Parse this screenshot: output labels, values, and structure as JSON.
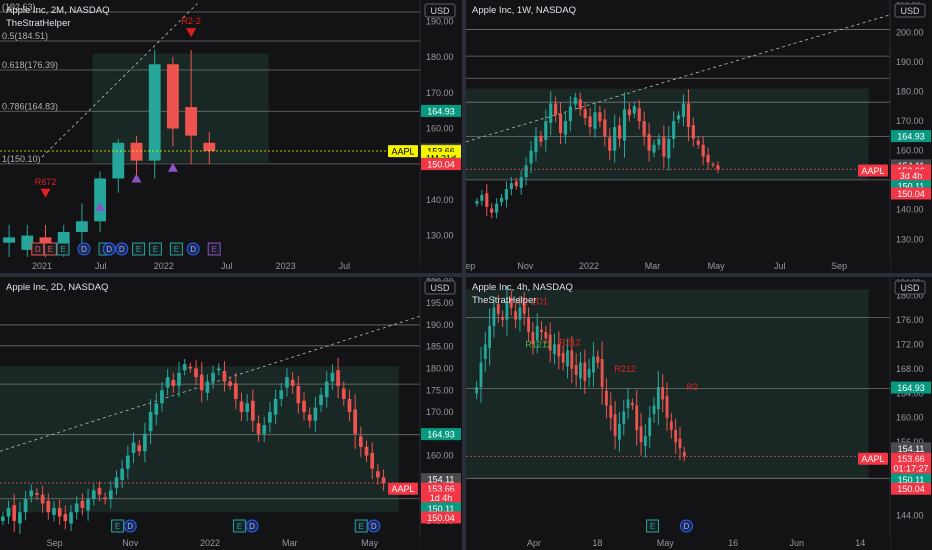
{
  "colors": {
    "up": "#26a69a",
    "down": "#ef5350",
    "grid": "#3a3a3e",
    "hline": "#8a8a8a",
    "zone": "#1f3a32",
    "price_green": "#089981",
    "price_red": "#f23645",
    "aapl_yellow": "#f5f500",
    "aapl_red": "#f25561",
    "marker_purple": "#8c52c4",
    "marker_red": "#e02020",
    "event_blue": "#2962ff",
    "event_green": "#26a69a",
    "event_red": "#ef5350"
  },
  "chart_data": [
    {
      "id": "p1",
      "type": "candlestick",
      "title": "Apple Inc, 2M, NASDAQ",
      "indicator": "TheStratHelper",
      "currency": "USD",
      "ylim": [
        124,
        196
      ],
      "yticks": [
        130,
        140,
        150,
        160,
        170,
        180,
        190
      ],
      "xticks": [
        {
          "x": 0.1,
          "label": "2021"
        },
        {
          "x": 0.24,
          "label": "Jul"
        },
        {
          "x": 0.39,
          "label": "2022"
        },
        {
          "x": 0.54,
          "label": "Jul"
        },
        {
          "x": 0.68,
          "label": "2023"
        },
        {
          "x": 0.82,
          "label": "Jul"
        }
      ],
      "candles": [
        {
          "o": 128,
          "h": 133,
          "l": 124,
          "c": 129.5
        },
        {
          "o": 126,
          "h": 133,
          "l": 122,
          "c": 130
        },
        {
          "o": 129.5,
          "h": 133,
          "l": 124,
          "c": 126
        },
        {
          "o": 126,
          "h": 133,
          "l": 124,
          "c": 131
        },
        {
          "o": 131,
          "h": 139,
          "l": 128,
          "c": 134
        },
        {
          "o": 134,
          "h": 148,
          "l": 131,
          "c": 146
        },
        {
          "o": 146,
          "h": 157,
          "l": 142,
          "c": 156
        },
        {
          "o": 156,
          "h": 158,
          "l": 147,
          "c": 151
        },
        {
          "o": 151,
          "h": 182,
          "l": 146,
          "c": 178
        },
        {
          "o": 178,
          "h": 180,
          "l": 155,
          "c": 160
        },
        {
          "o": 166,
          "h": 182,
          "l": 150,
          "c": 158
        },
        {
          "o": 156,
          "h": 159,
          "l": 150,
          "c": 153.7
        }
      ],
      "levels": [
        {
          "y": 192.63,
          "label": "(192.63)"
        },
        {
          "y": 184.51,
          "label": "0.5(184.51)"
        },
        {
          "y": 176.39,
          "label": "0.618(176.39)"
        },
        {
          "y": 164.83,
          "label": "0.786(164.83)"
        },
        {
          "y": 150.1,
          "label": "1(150.10)"
        }
      ],
      "price_labels": [
        {
          "y": 164.93,
          "text": "164.93",
          "kind": "green"
        },
        {
          "y": 154.11,
          "text": "154.11",
          "kind": "gray"
        },
        {
          "y": 153.66,
          "text": "153.66",
          "kind": "yellow"
        },
        {
          "y": 151.8,
          "text": "1M 21d",
          "kind": "yellow"
        },
        {
          "y": 150.11,
          "text": "150.11",
          "kind": "green"
        },
        {
          "y": 150.04,
          "text": "150.04",
          "kind": "red"
        }
      ],
      "tag": {
        "y": 153.66,
        "text": "AAPL",
        "kind": "yellow"
      },
      "markers": [
        {
          "i": 2,
          "y": 142,
          "shape": "down",
          "color": "red",
          "label": "R672"
        },
        {
          "i": 10,
          "y": 187,
          "shape": "down",
          "color": "red",
          "label": "R2-2"
        },
        {
          "i": 5,
          "y": 138,
          "shape": "up",
          "color": "purple"
        },
        {
          "i": 7,
          "y": 146,
          "shape": "up",
          "color": "purple"
        },
        {
          "i": 9,
          "y": 149,
          "shape": "up",
          "color": "purple"
        }
      ],
      "events": [
        {
          "x": 0.09,
          "t": "D",
          "c": "red"
        },
        {
          "x": 0.12,
          "t": "E",
          "c": "red"
        },
        {
          "x": 0.15,
          "t": "E",
          "c": "green"
        },
        {
          "x": 0.2,
          "t": "D",
          "c": "blue"
        },
        {
          "x": 0.25,
          "t": "E",
          "c": "green"
        },
        {
          "x": 0.29,
          "t": "D",
          "c": "blue"
        },
        {
          "x": 0.33,
          "t": "E",
          "c": "green"
        },
        {
          "x": 0.37,
          "t": "E",
          "c": "green"
        },
        {
          "x": 0.42,
          "t": "E",
          "c": "green"
        },
        {
          "x": 0.46,
          "t": "D",
          "c": "blue"
        },
        {
          "x": 0.51,
          "t": "E",
          "c": "purple"
        },
        {
          "x": 0.26,
          "t": "D",
          "c": "blue"
        }
      ]
    },
    {
      "id": "p2",
      "type": "candlestick",
      "title": "Apple Inc, 1W, NASDAQ",
      "currency": "USD",
      "ylim": [
        124,
        211
      ],
      "yticks": [
        130,
        140,
        150,
        160,
        170,
        180,
        190,
        200
      ],
      "xticks": [
        {
          "x": 0.01,
          "label": "ep"
        },
        {
          "x": 0.14,
          "label": "Nov"
        },
        {
          "x": 0.29,
          "label": "2022"
        },
        {
          "x": 0.44,
          "label": "Mar"
        },
        {
          "x": 0.59,
          "label": "May"
        },
        {
          "x": 0.74,
          "label": "Jul"
        },
        {
          "x": 0.88,
          "label": "Sep"
        }
      ],
      "series_close": [
        143,
        145,
        141,
        139,
        142,
        144,
        147,
        149,
        148,
        151,
        155,
        160,
        165,
        163,
        170,
        176,
        172,
        166,
        170,
        175,
        178,
        174,
        171,
        168,
        173,
        170,
        165,
        160,
        168,
        164,
        174,
        172,
        175,
        170,
        165,
        160,
        162,
        164,
        158,
        164,
        170,
        172,
        176,
        168,
        164,
        162,
        158,
        156,
        155,
        153.7
      ],
      "levels": [
        {
          "y": 201
        },
        {
          "y": 192
        },
        {
          "y": 184.5
        },
        {
          "y": 176.4
        },
        {
          "y": 164.8
        },
        {
          "y": 150.1
        }
      ],
      "price_labels": [
        {
          "y": 164.93,
          "text": "164.93",
          "kind": "green"
        },
        {
          "y": 155.0,
          "text": "154.11",
          "kind": "gray"
        },
        {
          "y": 153.3,
          "text": "153.66",
          "kind": "red"
        },
        {
          "y": 151.6,
          "text": "3d 4h",
          "kind": "red"
        },
        {
          "y": 148.0,
          "text": "150.11",
          "kind": "green"
        },
        {
          "y": 145.5,
          "text": "150.04",
          "kind": "red"
        }
      ],
      "tag": {
        "y": 153.3,
        "text": "AAPL",
        "kind": "red"
      },
      "top_partial": "210.??"
    },
    {
      "id": "p3",
      "type": "candlestick",
      "title": "Apple Inc, 2D, NASDAQ",
      "currency": "USD",
      "ylim": [
        142,
        201
      ],
      "yticks": [
        145,
        150,
        155,
        160,
        165,
        170,
        175,
        180,
        185,
        190,
        195,
        200
      ],
      "xticks": [
        {
          "x": 0.13,
          "label": "Sep"
        },
        {
          "x": 0.31,
          "label": "Nov"
        },
        {
          "x": 0.5,
          "label": "2022"
        },
        {
          "x": 0.69,
          "label": "Mar"
        },
        {
          "x": 0.88,
          "label": "May"
        }
      ],
      "series_close": [
        146,
        148,
        145,
        147,
        150,
        152,
        151,
        149,
        147,
        148,
        146,
        145,
        147,
        149,
        148,
        150,
        152,
        151,
        150,
        152,
        155,
        157,
        160,
        163,
        161,
        165,
        170,
        172,
        175,
        178,
        176,
        179,
        181,
        180,
        178,
        175,
        177,
        179,
        180,
        177,
        176,
        173,
        170,
        172,
        168,
        165,
        167,
        170,
        173,
        175,
        178,
        176,
        172,
        170,
        168,
        171,
        174,
        177,
        179,
        176,
        173,
        170,
        165,
        162,
        160,
        157,
        155,
        153.7
      ],
      "levels": [
        {
          "y": 190
        },
        {
          "y": 185.2
        },
        {
          "y": 176.4
        },
        {
          "y": 164.8
        },
        {
          "y": 150.1
        }
      ],
      "price_labels": [
        {
          "y": 164.93,
          "text": "164.93",
          "kind": "green"
        },
        {
          "y": 154.6,
          "text": "154.11",
          "kind": "gray"
        },
        {
          "y": 152.4,
          "text": "153.66",
          "kind": "red"
        },
        {
          "y": 150.4,
          "text": "1d 4h",
          "kind": "red"
        },
        {
          "y": 147.9,
          "text": "150.11",
          "kind": "green"
        },
        {
          "y": 145.8,
          "text": "150.04",
          "kind": "red"
        }
      ],
      "tag": {
        "y": 152.4,
        "text": "AAPL",
        "kind": "red"
      },
      "events": [
        {
          "x": 0.28,
          "t": "E",
          "c": "green"
        },
        {
          "x": 0.31,
          "t": "D",
          "c": "blue"
        },
        {
          "x": 0.57,
          "t": "E",
          "c": "green"
        },
        {
          "x": 0.6,
          "t": "D",
          "c": "blue"
        },
        {
          "x": 0.86,
          "t": "E",
          "c": "green"
        },
        {
          "x": 0.89,
          "t": "D",
          "c": "blue"
        }
      ],
      "top_partial": "100"
    },
    {
      "id": "p4",
      "type": "candlestick",
      "title": "Apple Inc, 4h, NASDAQ",
      "indicator": "TheStratHelper",
      "currency": "USD",
      "ylim": [
        141,
        183
      ],
      "yticks": [
        144,
        148,
        152,
        156,
        160,
        164,
        168,
        172,
        176,
        180
      ],
      "xticks": [
        {
          "x": 0.16,
          "label": "Apr"
        },
        {
          "x": 0.31,
          "label": "18"
        },
        {
          "x": 0.47,
          "label": "May"
        },
        {
          "x": 0.63,
          "label": "16"
        },
        {
          "x": 0.78,
          "label": "Jun"
        },
        {
          "x": 0.93,
          "label": "14"
        }
      ],
      "series_close": [
        165,
        169,
        172,
        175,
        178,
        177,
        176,
        179,
        178,
        176,
        178,
        177,
        174,
        172,
        175,
        174,
        173,
        171,
        172,
        170,
        169,
        171,
        168,
        167,
        169,
        166,
        168,
        170,
        169,
        165,
        162,
        160,
        157,
        159,
        161,
        163,
        162,
        158,
        156,
        157,
        160,
        162,
        165,
        163,
        160,
        158,
        156,
        155,
        153.7
      ],
      "levels": [
        {
          "y": 176.4
        },
        {
          "y": 164.8
        },
        {
          "y": 150.1
        }
      ],
      "price_labels": [
        {
          "y": 164.93,
          "text": "164.93",
          "kind": "green"
        },
        {
          "y": 155.0,
          "text": "154.11",
          "kind": "gray"
        },
        {
          "y": 153.3,
          "text": "153.66",
          "kind": "red"
        },
        {
          "y": 151.8,
          "text": "01:17:27",
          "kind": "red"
        },
        {
          "y": 149.9,
          "text": "150.11",
          "kind": "green"
        },
        {
          "y": 148.4,
          "text": "150.04",
          "kind": "red"
        }
      ],
      "tag": {
        "y": 153.3,
        "text": "AAPL",
        "kind": "red"
      },
      "labels": [
        {
          "x": 0.12,
          "y": 178.5,
          "text": "R1-2D1",
          "c": "red"
        },
        {
          "x": 0.14,
          "y": 171.5,
          "text": "R1212",
          "c": "green"
        },
        {
          "x": 0.22,
          "y": 171.8,
          "text": "R212",
          "c": "red"
        },
        {
          "x": 0.35,
          "y": 167.5,
          "text": "R212",
          "c": "red"
        },
        {
          "x": 0.52,
          "y": 164.5,
          "text": "R2",
          "c": "red"
        }
      ],
      "events": [
        {
          "x": 0.44,
          "t": "E",
          "c": "green"
        },
        {
          "x": 0.52,
          "t": "D",
          "c": "blue"
        }
      ],
      "top_partial": "184.00"
    }
  ]
}
